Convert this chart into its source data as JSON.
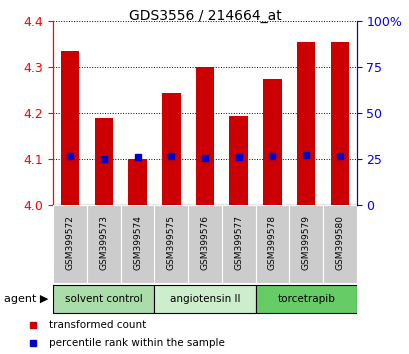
{
  "title": "GDS3556 / 214664_at",
  "samples": [
    "GSM399572",
    "GSM399573",
    "GSM399574",
    "GSM399575",
    "GSM399576",
    "GSM399577",
    "GSM399578",
    "GSM399579",
    "GSM399580"
  ],
  "bar_values": [
    4.335,
    4.19,
    4.1,
    4.245,
    4.3,
    4.195,
    4.275,
    4.355,
    4.355
  ],
  "percentile_values": [
    4.107,
    4.1,
    4.104,
    4.107,
    4.103,
    4.105,
    4.107,
    4.11,
    4.107
  ],
  "ymin": 4.0,
  "ymax": 4.4,
  "yticks": [
    4.0,
    4.1,
    4.2,
    4.3,
    4.4
  ],
  "bar_color": "#cc0000",
  "percentile_color": "#0000cc",
  "bar_width": 0.55,
  "agent_groups": [
    {
      "label": "solvent control",
      "start": 0,
      "end": 3,
      "color": "#aaddaa"
    },
    {
      "label": "angiotensin II",
      "start": 3,
      "end": 6,
      "color": "#cceecc"
    },
    {
      "label": "torcetrapib",
      "start": 6,
      "end": 9,
      "color": "#66cc66"
    }
  ],
  "legend_items": [
    {
      "label": "transformed count",
      "color": "#cc0000"
    },
    {
      "label": "percentile rank within the sample",
      "color": "#0000cc"
    }
  ],
  "pct_ticks_pct": [
    0,
    25,
    50,
    75,
    100
  ]
}
